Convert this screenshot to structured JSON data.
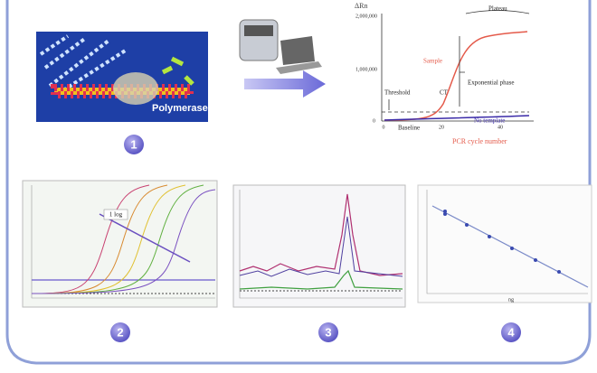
{
  "panel1": {
    "label": "Polymerase",
    "number": "1"
  },
  "plot": {
    "y_label": "ΔRn",
    "yticks": [
      "2,000,000",
      "1,000,000",
      "0"
    ],
    "xticks": [
      "0",
      "20",
      "40"
    ],
    "x_label": "PCR cycle number",
    "annotations": {
      "plateau": "Plateau",
      "sample": "Sample",
      "threshold": "Threshold",
      "ct": "CT",
      "exponential": "Exponential phase",
      "baseline": "Baseline",
      "no_template": "No template"
    }
  },
  "panel2": {
    "annotation": "1 log",
    "number": "2"
  },
  "panel3": {
    "number": "3"
  },
  "panel4": {
    "x_label": "ng",
    "number": "4"
  }
}
